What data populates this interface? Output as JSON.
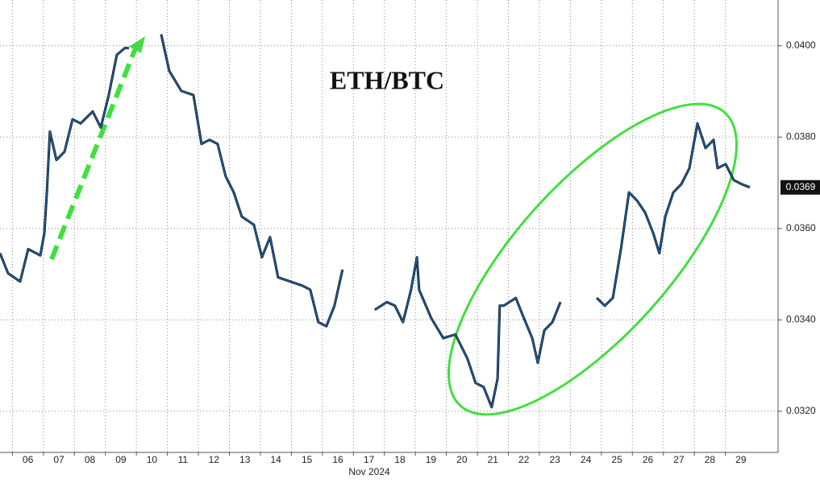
{
  "chart_data": {
    "type": "line",
    "title": "ETH/BTC",
    "x_label": "Nov 2024",
    "x": [
      5.6,
      5.86,
      6.25,
      6.51,
      6.9,
      7.03,
      7.11,
      7.21,
      7.42,
      7.68,
      7.94,
      8.2,
      8.59,
      8.85,
      9.11,
      9.37,
      9.63,
      9.76,
      null,
      10.8,
      11.06,
      11.45,
      11.84,
      12.1,
      12.36,
      12.62,
      12.88,
      13.14,
      13.4,
      13.79,
      14.05,
      14.31,
      14.57,
      14.96,
      15.35,
      15.61,
      15.87,
      16.13,
      16.39,
      16.65,
      null,
      17.69,
      18.08,
      18.34,
      18.6,
      18.86,
      19.05,
      19.12,
      19.51,
      19.9,
      20.29,
      20.68,
      20.94,
      21.2,
      21.46,
      21.65,
      21.72,
      21.85,
      22.24,
      22.5,
      22.77,
      22.95,
      23.16,
      23.42,
      23.68,
      null,
      24.85,
      25.11,
      25.37,
      25.63,
      25.89,
      26.15,
      26.41,
      26.67,
      26.87,
      27.06,
      27.32,
      27.58,
      27.84,
      28.1,
      28.36,
      28.62,
      28.75,
      29.01,
      29.27,
      29.53,
      29.79
    ],
    "series": [
      {
        "name": "ETH/BTC",
        "color": "#1d5fa0",
        "values": [
          0.03546,
          0.03502,
          0.03484,
          0.03555,
          0.03541,
          0.0359,
          0.03679,
          0.03812,
          0.0375,
          0.03768,
          0.03839,
          0.0383,
          0.03856,
          0.03821,
          0.03892,
          0.0398,
          0.03995,
          0.03995,
          null,
          0.04025,
          0.03945,
          0.03901,
          0.03892,
          0.03785,
          0.03794,
          0.03785,
          0.03714,
          0.03679,
          0.03626,
          0.03608,
          0.03537,
          0.03581,
          0.03493,
          0.03484,
          0.03475,
          0.03466,
          0.03395,
          0.03386,
          0.03431,
          0.0351,
          null,
          0.03422,
          0.03439,
          0.03431,
          0.03395,
          0.03466,
          0.03537,
          0.03466,
          0.03404,
          0.0336,
          0.03368,
          0.03315,
          0.03262,
          0.03253,
          0.03209,
          0.03271,
          0.03431,
          0.03431,
          0.03448,
          0.03404,
          0.0336,
          0.03306,
          0.03377,
          0.03395,
          0.03439,
          null,
          0.03448,
          0.03431,
          0.03448,
          0.03555,
          0.03679,
          0.03661,
          0.03635,
          0.0359,
          0.03546,
          0.03626,
          0.03679,
          0.03697,
          0.03732,
          0.0383,
          0.03776,
          0.03794,
          0.03732,
          0.03741,
          0.03706,
          0.03697,
          0.0369
        ]
      }
    ],
    "last_value": 0.0369,
    "xlim": [
      5.6,
      30.7
    ],
    "ylim": [
      0.0311,
      0.041
    ],
    "xticks": [
      {
        "value": 6,
        "label": "06"
      },
      {
        "value": 7,
        "label": "07"
      },
      {
        "value": 8,
        "label": "08"
      },
      {
        "value": 9,
        "label": "09"
      },
      10,
      11,
      12,
      13,
      14,
      15,
      16,
      17,
      18,
      19,
      20,
      21,
      22,
      23,
      24,
      25,
      26,
      27,
      28,
      29
    ],
    "yticks": [
      {
        "value": 0.032,
        "label": "0.0320"
      },
      {
        "value": 0.034,
        "label": "0.0340"
      },
      {
        "value": 0.036,
        "label": "0.0360"
      },
      {
        "value": 0.038,
        "label": "0.0380"
      },
      {
        "value": 0.04,
        "label": "0.0400"
      }
    ],
    "grid": true
  }
}
